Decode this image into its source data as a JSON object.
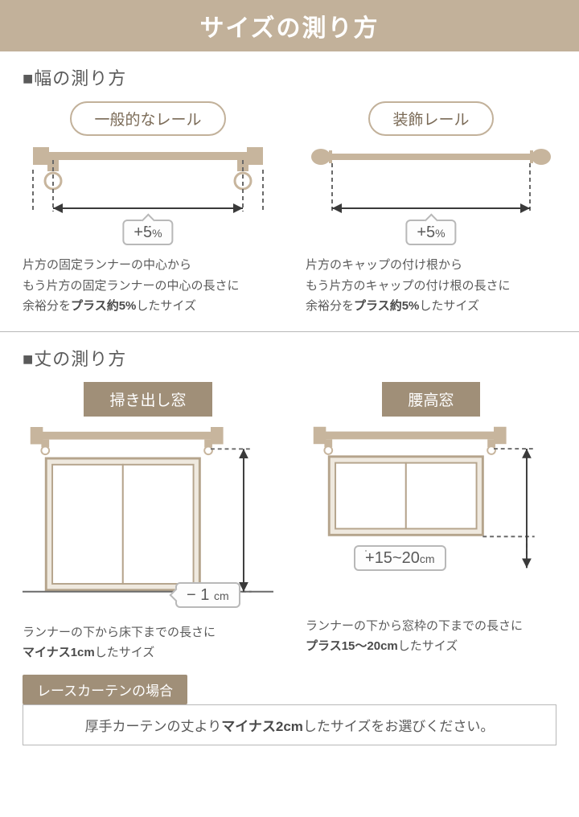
{
  "colors": {
    "banner_bg": "#c2b19a",
    "tab_bg": "#a08f78",
    "pill_border": "#c2b19a",
    "pill_text": "#7a6a56",
    "line": "#5a5a5a",
    "rail": "#c7b59d",
    "window_stroke": "#b5a48c",
    "window_fill": "#efe9df",
    "divider": "#b8b8b8",
    "dashed": "#6a6a6a"
  },
  "title": "サイズの測り方",
  "width": {
    "heading": "■幅の測り方",
    "standard": {
      "label": "一般的なレール",
      "badge": {
        "prefix": "+",
        "value": "5",
        "unit": "%"
      },
      "desc": "片方の固定ランナーの中心から<br>もう片方の固定ランナーの中心の長さに<br>余裕分を<b>プラス約5%</b>したサイズ"
    },
    "decorative": {
      "label": "装飾レール",
      "badge": {
        "prefix": "+",
        "value": "5",
        "unit": "%"
      },
      "desc": "片方のキャップの付け根から<br>もう片方のキャップの付け根の長さに<br>余裕分を<b>プラス約5%</b>したサイズ"
    }
  },
  "height": {
    "heading": "■丈の測り方",
    "floor": {
      "label": "掃き出し窓",
      "badge": {
        "prefix": "−",
        "value": "1",
        "unit": "cm"
      },
      "desc": "ランナーの下から床下までの長さに<br><b>マイナス1cm</b>したサイズ"
    },
    "waist": {
      "label": "腰高窓",
      "badge": {
        "prefix": "+",
        "value": "15~20",
        "unit": "cm"
      },
      "desc": "ランナーの下から窓枠の下までの長さに<br><b>プラス15～20cm</b>したサイズ"
    }
  },
  "lace": {
    "label": "レースカーテンの場合",
    "text": "厚手カーテンの丈より<b>マイナス2cm</b>したサイズをお選びください。"
  }
}
